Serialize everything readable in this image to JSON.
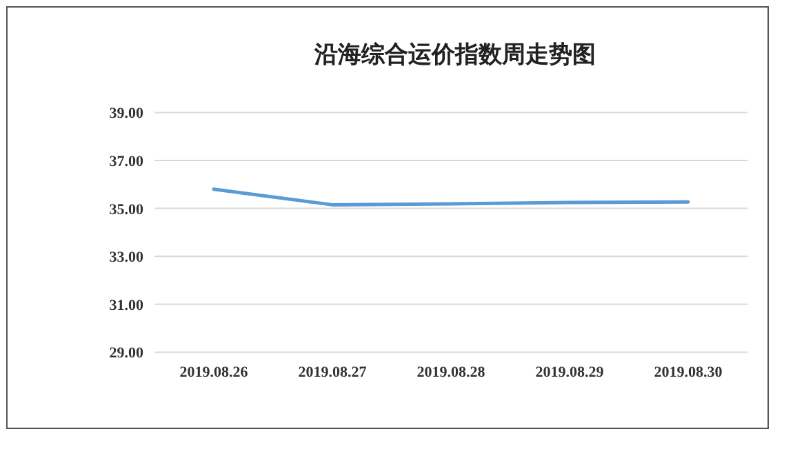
{
  "chart_data": {
    "type": "line",
    "title": "沿海综合运价指数周走势图",
    "categories": [
      "2019.08.26",
      "2019.08.27",
      "2019.08.28",
      "2019.08.29",
      "2019.08.30"
    ],
    "series": [
      {
        "color": "#5b9bd5",
        "values": [
          35.8,
          35.15,
          35.19,
          35.25,
          35.27
        ]
      }
    ],
    "ylim": [
      29,
      39
    ],
    "yticks": [
      {
        "value": 29,
        "label": "29.00"
      },
      {
        "value": 31,
        "label": "31.00"
      },
      {
        "value": 33,
        "label": "33.00"
      },
      {
        "value": 35,
        "label": "35.00"
      },
      {
        "value": 37,
        "label": "37.00"
      },
      {
        "value": 39,
        "label": "39.00"
      }
    ],
    "grid": "y",
    "marker": "none",
    "line_style": "solid"
  }
}
